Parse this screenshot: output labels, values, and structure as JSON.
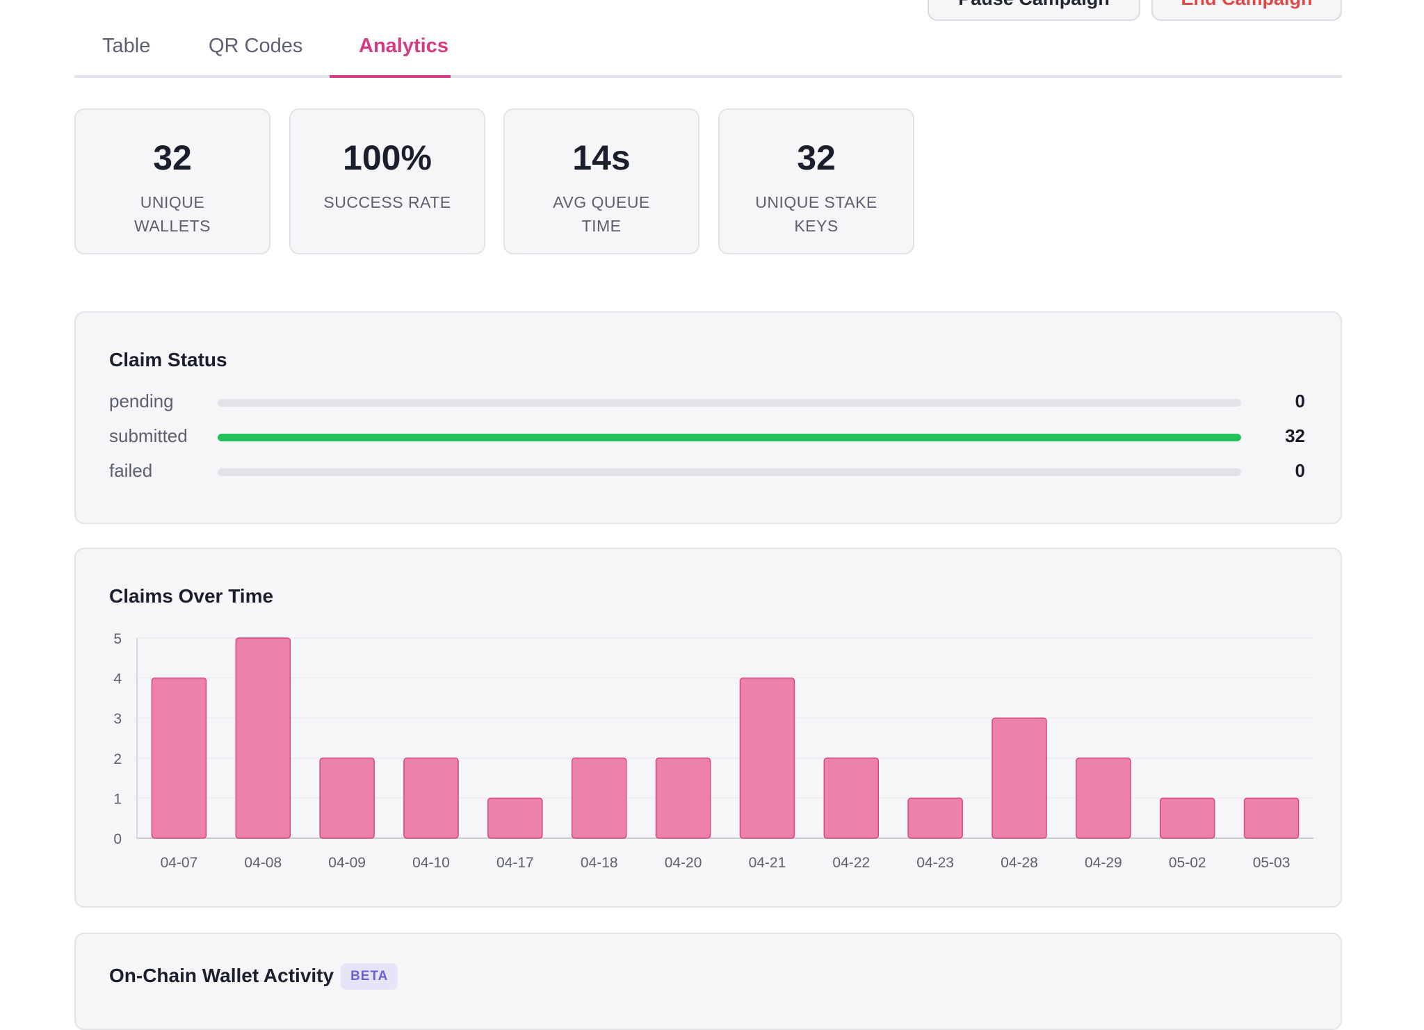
{
  "header": {
    "pause_label": "Pause Campaign",
    "end_label": "End Campaign"
  },
  "tabs": [
    {
      "label": "Table"
    },
    {
      "label": "QR Codes"
    },
    {
      "label": "Analytics",
      "active": true
    }
  ],
  "stats": [
    {
      "value": "32",
      "label": "UNIQUE WALLETS"
    },
    {
      "value": "100%",
      "label": "SUCCESS RATE"
    },
    {
      "value": "14s",
      "label": "AVG QUEUE TIME"
    },
    {
      "value": "32",
      "label": "UNIQUE STAKE KEYS"
    }
  ],
  "claim_status": {
    "title": "Claim Status",
    "rows": [
      {
        "label": "pending",
        "count": "0",
        "fraction": 0
      },
      {
        "label": "submitted",
        "count": "32",
        "fraction": 1
      },
      {
        "label": "failed",
        "count": "0",
        "fraction": 0
      }
    ],
    "fill_color": "#22c25a"
  },
  "claims_over_time": {
    "title": "Claims Over Time"
  },
  "chart_data": {
    "type": "bar",
    "title": "Claims Over Time",
    "categories": [
      "04-07",
      "04-08",
      "04-09",
      "04-10",
      "04-17",
      "04-18",
      "04-20",
      "04-21",
      "04-22",
      "04-23",
      "04-28",
      "04-29",
      "05-02",
      "05-03"
    ],
    "values": [
      4,
      5,
      2,
      2,
      1,
      2,
      2,
      4,
      2,
      1,
      3,
      2,
      1,
      1
    ],
    "ylim": [
      0,
      5
    ],
    "yticks": [
      0,
      1,
      2,
      3,
      4,
      5
    ],
    "grid": true,
    "bar_color": "#ec82ab",
    "bar_stroke": "#d7467f"
  },
  "wallet_activity": {
    "title": "On-Chain Wallet Activity",
    "badge": "BETA"
  }
}
